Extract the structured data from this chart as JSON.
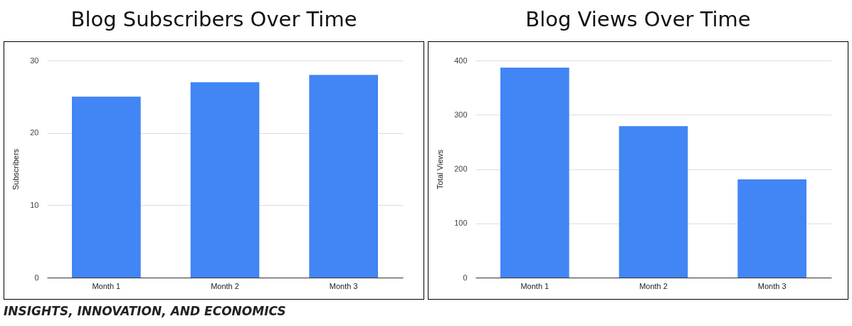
{
  "chart_data": [
    {
      "type": "bar",
      "title": "Blog Subscribers Over Time",
      "ylabel": "Subscribers",
      "categories": [
        "Month 1",
        "Month 2",
        "Month 3"
      ],
      "values": [
        25,
        27,
        28
      ],
      "color": "#4285f4",
      "ylim": [
        0,
        30
      ],
      "yticks": [
        0,
        10,
        20,
        30
      ],
      "grid": "y",
      "annotations": [
        "INSIGHTS, INNOVATION, AND ECONOMICS"
      ]
    },
    {
      "type": "bar",
      "title": "Blog Views Over Time",
      "ylabel": "Total Views",
      "categories": [
        "Month 1",
        "Month 2",
        "Month 3"
      ],
      "values": [
        387,
        279,
        181
      ],
      "color": "#4285f4",
      "ylim": [
        0,
        400
      ],
      "yticks": [
        0,
        100,
        200,
        300,
        400
      ],
      "grid": "y"
    }
  ]
}
